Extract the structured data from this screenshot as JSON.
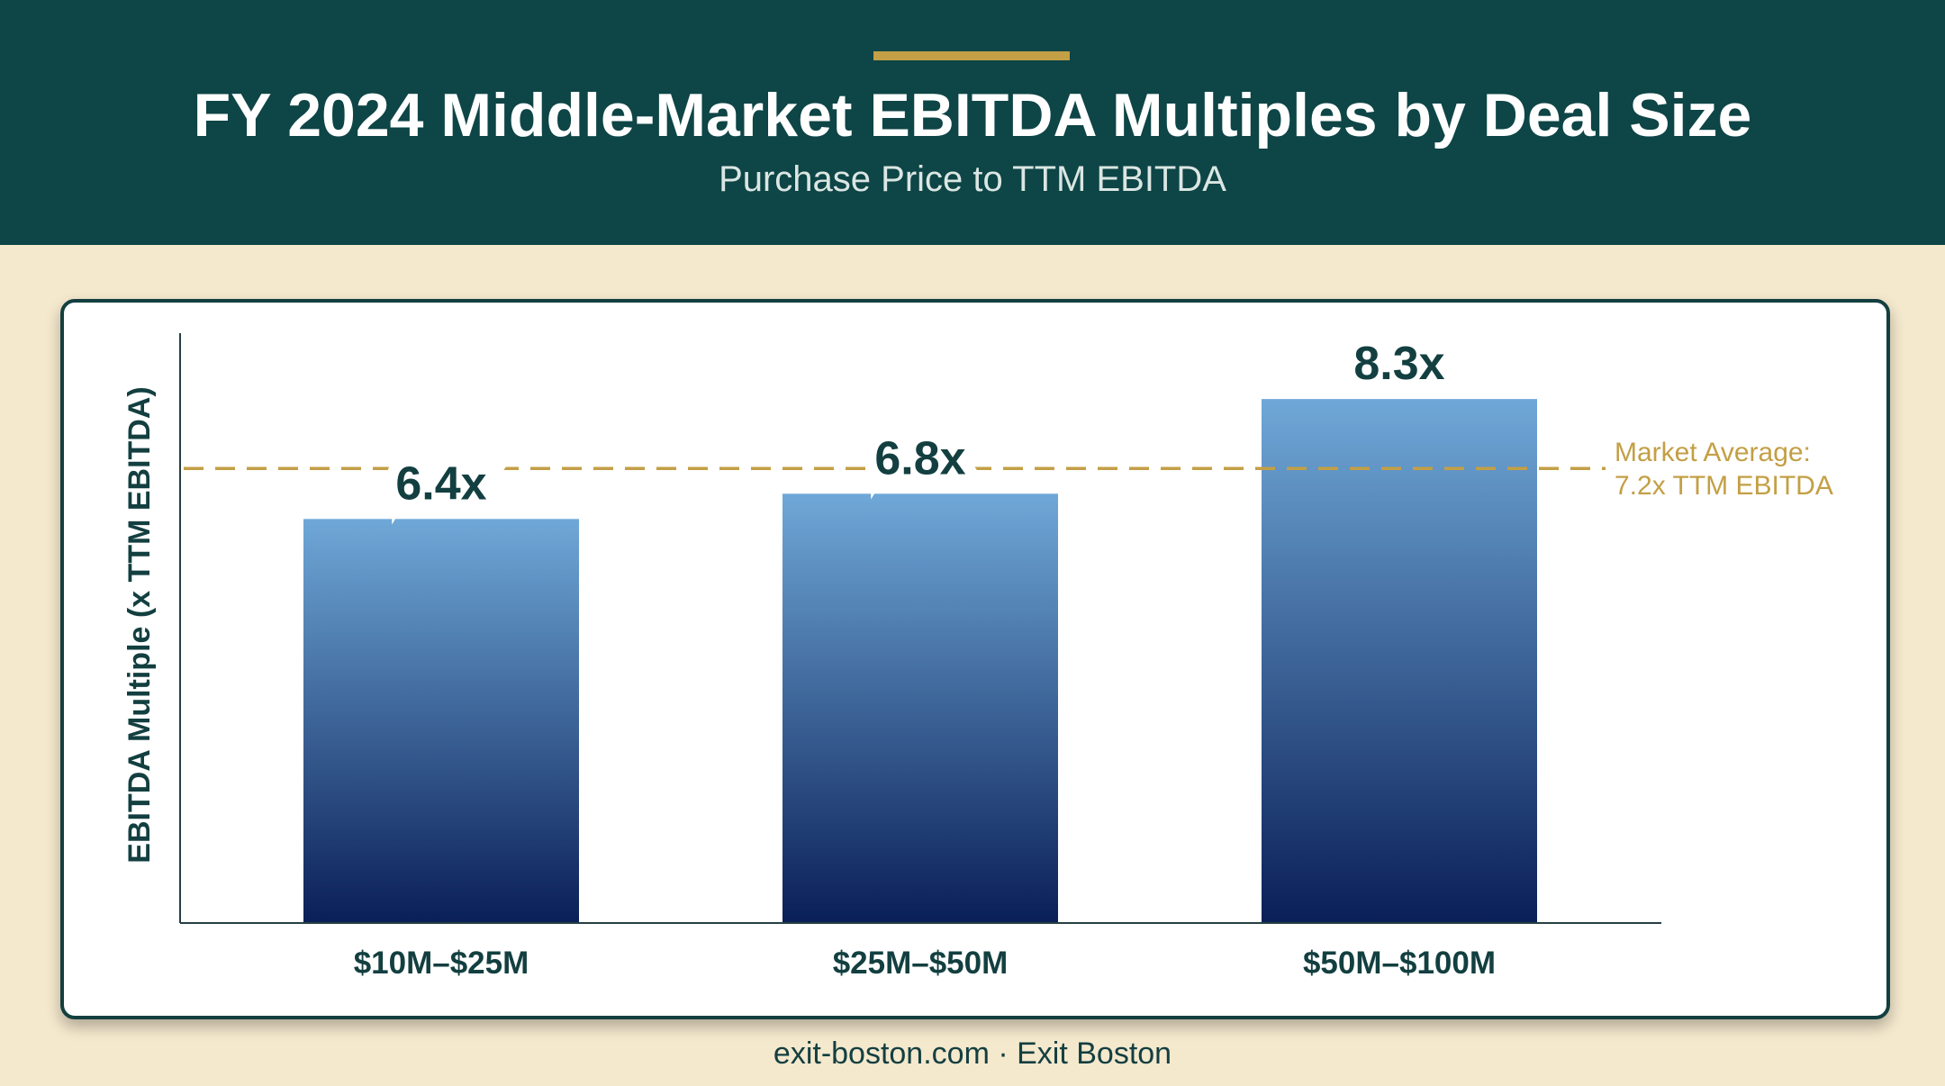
{
  "header": {
    "title": "FY 2024 Middle-Market EBITDA Multiples by Deal Size",
    "subtitle": "Purchase Price to TTM EBITDA"
  },
  "footer": {
    "text": "exit-boston.com · Exit Boston"
  },
  "colors": {
    "header_bg": "#0e4546",
    "page_bg": "#f4e8cd",
    "accent_gold": "#c39f45",
    "bar_top": "#6fa8d8",
    "bar_bottom": "#0a1f57",
    "text_dark": "#133f40"
  },
  "chart_data": {
    "type": "bar",
    "title": "FY 2024 Middle-Market EBITDA Multiples by Deal Size",
    "subtitle": "Purchase Price to TTM EBITDA",
    "xlabel": "",
    "ylabel": "EBITDA Multiple (x TTM EBITDA)",
    "categories": [
      "$10M–$25M",
      "$25M–$50M",
      "$50M–$100M"
    ],
    "values": [
      6.4,
      6.8,
      8.3
    ],
    "data_labels": [
      "6.4x",
      "6.8x",
      "8.3x"
    ],
    "ylim": [
      0,
      9.4
    ],
    "grid": false,
    "legend": "none",
    "reference_line": {
      "value": 7.2,
      "label_line1": "Market Average:",
      "label_line2": "7.2x TTM EBITDA",
      "style": "dashed"
    }
  }
}
